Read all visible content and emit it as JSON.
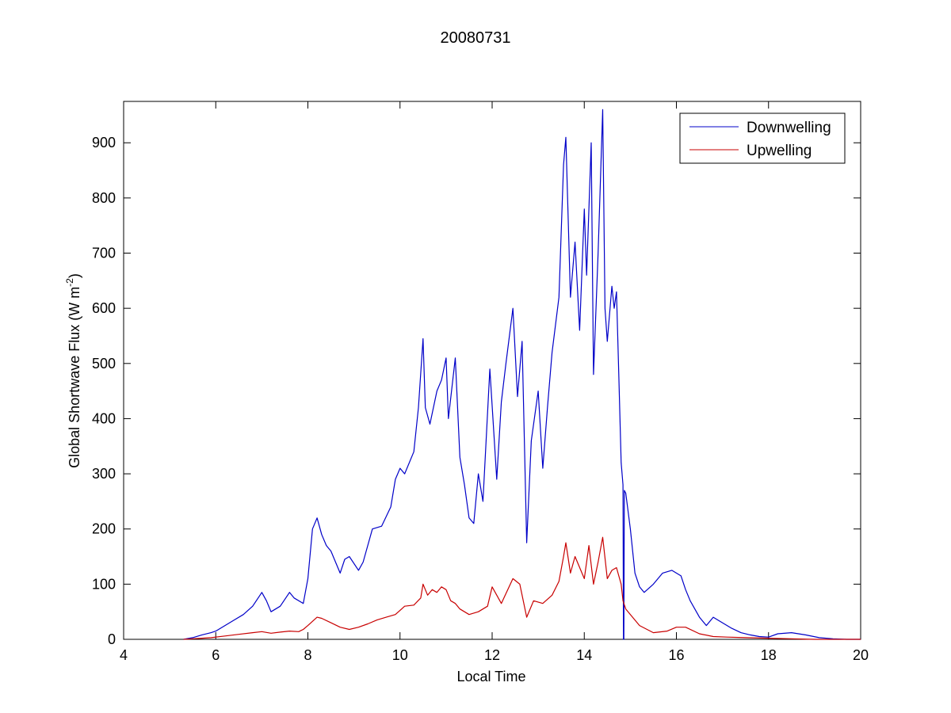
{
  "chart_data": {
    "type": "line",
    "title": "20080731",
    "xlabel": "Local Time",
    "ylabel": "Global Shortwave Flux (W m",
    "ylabel_sup": "-2",
    "ylabel_close": ")",
    "xlim": [
      4,
      20
    ],
    "ylim": [
      0,
      975
    ],
    "xticks": [
      4,
      6,
      8,
      10,
      12,
      14,
      16,
      18,
      20
    ],
    "yticks": [
      0,
      100,
      200,
      300,
      400,
      500,
      600,
      700,
      800,
      900
    ],
    "grid": false,
    "legend_position": "top-right",
    "series": [
      {
        "name": "Downwelling",
        "color": "#0000c8",
        "x": [
          5.3,
          5.5,
          5.7,
          5.9,
          6.0,
          6.2,
          6.4,
          6.6,
          6.8,
          7.0,
          7.1,
          7.2,
          7.4,
          7.6,
          7.7,
          7.9,
          8.0,
          8.1,
          8.2,
          8.3,
          8.4,
          8.5,
          8.7,
          8.8,
          8.9,
          9.1,
          9.2,
          9.4,
          9.6,
          9.8,
          9.9,
          10.0,
          10.1,
          10.3,
          10.4,
          10.5,
          10.55,
          10.65,
          10.8,
          10.9,
          11.0,
          11.05,
          11.2,
          11.3,
          11.4,
          11.5,
          11.6,
          11.7,
          11.8,
          11.95,
          12.1,
          12.2,
          12.3,
          12.45,
          12.55,
          12.65,
          12.75,
          12.85,
          13.0,
          13.1,
          13.2,
          13.3,
          13.45,
          13.55,
          13.6,
          13.7,
          13.8,
          13.9,
          14.0,
          14.05,
          14.15,
          14.2,
          14.3,
          14.4,
          14.45,
          14.5,
          14.55,
          14.6,
          14.65,
          14.7,
          14.75,
          14.8,
          14.84,
          14.85,
          14.86,
          14.87,
          14.9,
          15.0,
          15.1,
          15.2,
          15.3,
          15.5,
          15.7,
          15.9,
          16.1,
          16.2,
          16.3,
          16.5,
          16.65,
          16.8,
          17.0,
          17.2,
          17.4,
          17.6,
          17.8,
          18.0,
          18.2,
          18.5,
          18.8,
          19.1,
          19.4,
          19.7,
          20.0
        ],
        "y": [
          0,
          3,
          8,
          12,
          15,
          25,
          35,
          45,
          60,
          85,
          70,
          50,
          60,
          85,
          75,
          65,
          110,
          200,
          220,
          190,
          170,
          160,
          120,
          145,
          150,
          125,
          140,
          200,
          205,
          240,
          290,
          310,
          300,
          340,
          420,
          545,
          420,
          390,
          450,
          470,
          510,
          400,
          510,
          330,
          280,
          220,
          210,
          300,
          250,
          490,
          290,
          430,
          500,
          600,
          440,
          540,
          175,
          360,
          450,
          310,
          420,
          520,
          620,
          860,
          910,
          620,
          720,
          560,
          780,
          660,
          900,
          480,
          700,
          960,
          600,
          540,
          590,
          640,
          600,
          630,
          480,
          320,
          280,
          0,
          0,
          270,
          265,
          200,
          120,
          95,
          85,
          100,
          120,
          125,
          115,
          90,
          70,
          40,
          25,
          40,
          30,
          20,
          12,
          8,
          5,
          4,
          10,
          12,
          8,
          3,
          1,
          0,
          0
        ]
      },
      {
        "name": "Upwelling",
        "color": "#c80000",
        "x": [
          5.3,
          5.5,
          5.7,
          5.9,
          6.2,
          6.5,
          6.8,
          7.0,
          7.2,
          7.4,
          7.6,
          7.8,
          7.9,
          8.0,
          8.2,
          8.3,
          8.5,
          8.7,
          8.9,
          9.1,
          9.3,
          9.5,
          9.7,
          9.9,
          10.1,
          10.3,
          10.45,
          10.5,
          10.6,
          10.7,
          10.8,
          10.9,
          11.0,
          11.1,
          11.2,
          11.3,
          11.5,
          11.7,
          11.9,
          12.0,
          12.2,
          12.45,
          12.6,
          12.75,
          12.9,
          13.1,
          13.3,
          13.45,
          13.55,
          13.6,
          13.7,
          13.8,
          14.0,
          14.1,
          14.2,
          14.3,
          14.4,
          14.5,
          14.6,
          14.7,
          14.8,
          14.84,
          14.9,
          15.0,
          15.2,
          15.5,
          15.8,
          16.0,
          16.2,
          16.5,
          16.8,
          17.1,
          17.5,
          18.0,
          18.5,
          19.0,
          19.5,
          20.0
        ],
        "y": [
          0,
          1,
          2,
          3,
          6,
          9,
          12,
          14,
          11,
          13,
          15,
          14,
          18,
          25,
          40,
          38,
          30,
          22,
          18,
          22,
          28,
          35,
          40,
          45,
          60,
          62,
          75,
          100,
          80,
          90,
          85,
          95,
          90,
          70,
          65,
          55,
          45,
          50,
          60,
          95,
          65,
          110,
          100,
          40,
          70,
          65,
          80,
          105,
          150,
          175,
          120,
          150,
          110,
          170,
          100,
          140,
          185,
          110,
          125,
          130,
          100,
          70,
          55,
          45,
          25,
          12,
          15,
          22,
          22,
          10,
          5,
          4,
          3,
          2,
          1,
          0,
          0,
          0
        ]
      }
    ]
  }
}
